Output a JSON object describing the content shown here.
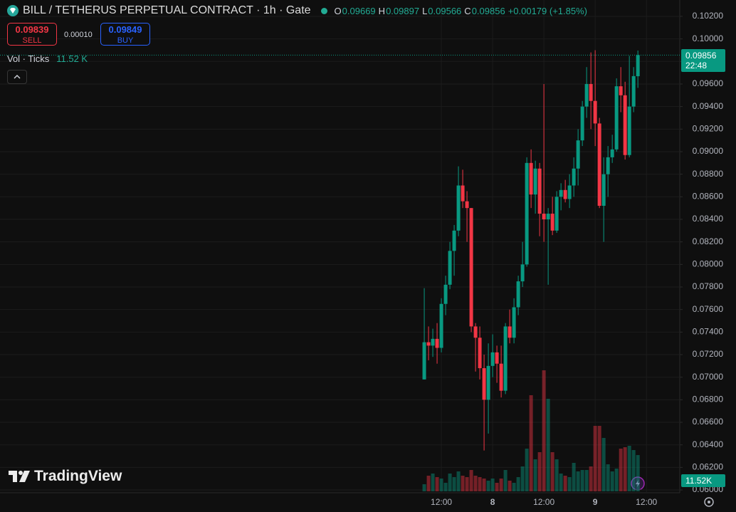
{
  "ui": {
    "title": "BILL / TETHERUS PERPETUAL CONTRACT · 1h · Gate",
    "ohlc_letters": [
      "O",
      "H",
      "L",
      "C"
    ],
    "change": "+0.00179 (+1.85%)",
    "sell_price": "0.09839",
    "sell_label": "SELL",
    "spread": "0.00010",
    "buy_price": "0.09849",
    "buy_label": "BUY",
    "vol_legend": "Vol · Ticks",
    "vol_legend_value": "11.52 K",
    "countdown": "22:48",
    "vol_axis_label": "11.52K",
    "brand": "TradingView"
  },
  "chart_data": {
    "type": "candlestick",
    "up_color": "#089981",
    "down_color": "#f23645",
    "xlim": [
      -99.3,
      59.8
    ],
    "xticks": [
      {
        "value": 4,
        "label": "12:00"
      },
      {
        "value": 16,
        "label": "8"
      },
      {
        "value": 28,
        "label": "12:00"
      },
      {
        "value": 40,
        "label": "9"
      },
      {
        "value": 52,
        "label": "12:00"
      }
    ],
    "ylim": [
      0.05975,
      0.10345
    ],
    "yticks": [
      {
        "value": 0.06,
        "label": "0.06000"
      },
      {
        "value": 0.062,
        "label": "0.06200"
      },
      {
        "value": 0.064,
        "label": "0.06400"
      },
      {
        "value": 0.066,
        "label": "0.06600"
      },
      {
        "value": 0.068,
        "label": "0.06800"
      },
      {
        "value": 0.07,
        "label": "0.07000"
      },
      {
        "value": 0.072,
        "label": "0.07200"
      },
      {
        "value": 0.074,
        "label": "0.07400"
      },
      {
        "value": 0.076,
        "label": "0.07600"
      },
      {
        "value": 0.078,
        "label": "0.07800"
      },
      {
        "value": 0.08,
        "label": "0.08000"
      },
      {
        "value": 0.082,
        "label": "0.08200"
      },
      {
        "value": 0.084,
        "label": "0.08400"
      },
      {
        "value": 0.086,
        "label": "0.08600"
      },
      {
        "value": 0.088,
        "label": "0.08800"
      },
      {
        "value": 0.09,
        "label": "0.09000"
      },
      {
        "value": 0.092,
        "label": "0.09200"
      },
      {
        "value": 0.094,
        "label": "0.09400"
      },
      {
        "value": 0.096,
        "label": "0.09600"
      },
      {
        "value": 0.098,
        "label": "0.09800"
      },
      {
        "value": 0.1,
        "label": "0.10000"
      },
      {
        "value": 0.102,
        "label": "0.10200"
      }
    ],
    "grid": true,
    "open": [
      0.0698,
      0.0731,
      0.0728,
      0.0734,
      0.0726,
      0.0765,
      0.0782,
      0.0812,
      0.083,
      0.087,
      0.0856,
      0.085,
      0.0745,
      0.0735,
      0.0708,
      0.068,
      0.071,
      0.0722,
      0.0712,
      0.0688,
      0.0745,
      0.0735,
      0.0762,
      0.0785,
      0.08,
      0.089,
      0.0862,
      0.0885,
      0.0845,
      0.084,
      0.0845,
      0.083,
      0.086,
      0.0866,
      0.0858,
      0.087,
      0.0885,
      0.091,
      0.094,
      0.096,
      0.0945,
      0.0925,
      0.0852,
      0.088,
      0.0895,
      0.0902,
      0.0958,
      0.095,
      0.0897,
      0.094,
      0.09669
    ],
    "high": [
      0.0779,
      0.0745,
      0.0743,
      0.0748,
      0.077,
      0.079,
      0.082,
      0.0835,
      0.0887,
      0.0884,
      0.0865,
      0.085,
      0.0748,
      0.0745,
      0.072,
      0.073,
      0.0738,
      0.0728,
      0.0728,
      0.0748,
      0.076,
      0.077,
      0.079,
      0.082,
      0.0895,
      0.0902,
      0.0892,
      0.089,
      0.096,
      0.085,
      0.086,
      0.0865,
      0.0872,
      0.0875,
      0.088,
      0.0895,
      0.092,
      0.0945,
      0.0975,
      0.0988,
      0.099,
      0.093,
      0.0895,
      0.0905,
      0.0915,
      0.0965,
      0.0975,
      0.0962,
      0.0985,
      0.0975,
      0.09897
    ],
    "low": [
      0.0698,
      0.0715,
      0.0718,
      0.0712,
      0.0722,
      0.0755,
      0.0778,
      0.079,
      0.0825,
      0.085,
      0.082,
      0.074,
      0.0705,
      0.0698,
      0.0635,
      0.065,
      0.07,
      0.0695,
      0.0682,
      0.0685,
      0.073,
      0.073,
      0.0755,
      0.078,
      0.0798,
      0.085,
      0.0845,
      0.0825,
      0.082,
      0.0782,
      0.0826,
      0.0828,
      0.0848,
      0.0855,
      0.085,
      0.086,
      0.087,
      0.0905,
      0.093,
      0.092,
      0.0905,
      0.085,
      0.082,
      0.086,
      0.089,
      0.09,
      0.0935,
      0.0893,
      0.0895,
      0.0935,
      0.09566
    ],
    "close": [
      0.0731,
      0.0728,
      0.0734,
      0.0726,
      0.0765,
      0.0782,
      0.0812,
      0.083,
      0.087,
      0.0856,
      0.085,
      0.0745,
      0.0735,
      0.0708,
      0.068,
      0.071,
      0.0722,
      0.0712,
      0.0688,
      0.0745,
      0.0735,
      0.0762,
      0.0785,
      0.08,
      0.089,
      0.0862,
      0.0885,
      0.0845,
      0.084,
      0.0845,
      0.083,
      0.086,
      0.0866,
      0.0858,
      0.087,
      0.0885,
      0.091,
      0.094,
      0.096,
      0.0945,
      0.0925,
      0.0852,
      0.088,
      0.0895,
      0.0902,
      0.0958,
      0.095,
      0.0897,
      0.094,
      0.0967,
      0.09856
    ],
    "volume": [
      2260,
      4970,
      5650,
      4520,
      4070,
      2710,
      5650,
      4520,
      6330,
      4970,
      4520,
      6780,
      4970,
      4520,
      4070,
      3390,
      4070,
      2710,
      4070,
      6780,
      3390,
      2710,
      4520,
      7910,
      13560,
      30510,
      10170,
      12430,
      38420,
      29380,
      12430,
      10170,
      5650,
      4970,
      4520,
      9040,
      6330,
      6780,
      6780,
      7910,
      20790,
      20790,
      16950,
      8590,
      6330,
      7230,
      13560,
      14010,
      14460,
      13110,
      11520
    ]
  }
}
